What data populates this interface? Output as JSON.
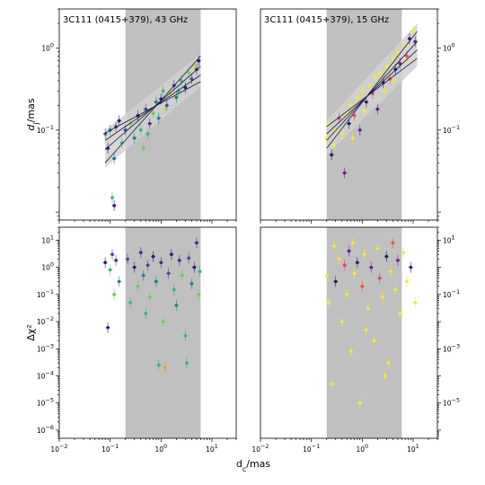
{
  "chart_data": [
    {
      "type": "scatter",
      "title": "3C111 (0415+379), 43 GHz",
      "xlabel": "",
      "ylabel_base": "d",
      "ylabel_sub": "j",
      "ylabel_unit": "/mas",
      "xscale": "log",
      "yscale": "log",
      "xlim": [
        0.01,
        30
      ],
      "ylim": [
        0.008,
        3
      ],
      "yticks": [
        {
          "v": 0.1,
          "label": "10",
          "exp": "−1"
        },
        {
          "v": 1,
          "label": "10",
          "exp": "0"
        }
      ],
      "shaded_range": [
        0.2,
        6
      ],
      "grid": false,
      "fit_lines": [
        {
          "x": [
            0.08,
            6
          ],
          "y": [
            0.04,
            0.8
          ]
        },
        {
          "x": [
            0.08,
            6
          ],
          "y": [
            0.058,
            0.6
          ]
        },
        {
          "x": [
            0.08,
            6
          ],
          "y": [
            0.075,
            0.47
          ]
        },
        {
          "x": [
            0.08,
            6
          ],
          "y": [
            0.092,
            0.39
          ]
        }
      ],
      "band": {
        "x": [
          0.08,
          6
        ],
        "lower": [
          0.035,
          0.34
        ],
        "upper": [
          0.1,
          0.85
        ]
      },
      "points": [
        {
          "x": 0.08,
          "y": 0.09,
          "c": "#3b4a9c"
        },
        {
          "x": 0.09,
          "y": 0.06,
          "c": "#2b1a6e"
        },
        {
          "x": 0.1,
          "y": 0.1,
          "c": "#1f7f8c"
        },
        {
          "x": 0.11,
          "y": 0.015,
          "c": "#35b779"
        },
        {
          "x": 0.12,
          "y": 0.045,
          "c": "#1f6f8c"
        },
        {
          "x": 0.12,
          "y": 0.012,
          "c": "#2b1a6e"
        },
        {
          "x": 0.13,
          "y": 0.11,
          "c": "#4a2a8a"
        },
        {
          "x": 0.15,
          "y": 0.13,
          "c": "#2b1a6e"
        },
        {
          "x": 0.17,
          "y": 0.07,
          "c": "#35b779"
        },
        {
          "x": 0.2,
          "y": 0.1,
          "c": "#3b4a9c"
        },
        {
          "x": 0.25,
          "y": 0.12,
          "c": "#6ccd5a"
        },
        {
          "x": 0.3,
          "y": 0.08,
          "c": "#1f7f8c"
        },
        {
          "x": 0.35,
          "y": 0.15,
          "c": "#2b1a6e"
        },
        {
          "x": 0.4,
          "y": 0.1,
          "c": "#35b779"
        },
        {
          "x": 0.5,
          "y": 0.18,
          "c": "#3b4a9c"
        },
        {
          "x": 0.6,
          "y": 0.12,
          "c": "#4a2a8a"
        },
        {
          "x": 0.7,
          "y": 0.16,
          "c": "#6ccd5a"
        },
        {
          "x": 0.8,
          "y": 0.22,
          "c": "#1f7f8c"
        },
        {
          "x": 1.0,
          "y": 0.24,
          "c": "#2b1a6e"
        },
        {
          "x": 1.1,
          "y": 0.3,
          "c": "#35b779"
        },
        {
          "x": 1.3,
          "y": 0.2,
          "c": "#3b4a9c"
        },
        {
          "x": 1.5,
          "y": 0.28,
          "c": "#b5de2b"
        },
        {
          "x": 1.8,
          "y": 0.35,
          "c": "#4a2a8a"
        },
        {
          "x": 2.0,
          "y": 0.25,
          "c": "#1f7f8c"
        },
        {
          "x": 2.5,
          "y": 0.4,
          "c": "#35b779"
        },
        {
          "x": 3.0,
          "y": 0.33,
          "c": "#2b1a6e"
        },
        {
          "x": 3.5,
          "y": 0.5,
          "c": "#6ccd5a"
        },
        {
          "x": 4.0,
          "y": 0.42,
          "c": "#3b4a9c"
        },
        {
          "x": 5.0,
          "y": 0.55,
          "c": "#4a2a8a"
        },
        {
          "x": 5.5,
          "y": 0.7,
          "c": "#2b1a6e"
        },
        {
          "x": 0.45,
          "y": 0.06,
          "c": "#6ccd5a"
        },
        {
          "x": 0.55,
          "y": 0.09,
          "c": "#35b779"
        },
        {
          "x": 0.9,
          "y": 0.14,
          "c": "#1f7f8c"
        },
        {
          "x": 1.2,
          "y": 0.18,
          "c": "#b5de2b"
        },
        {
          "x": 2.2,
          "y": 0.3,
          "c": "#35b779"
        },
        {
          "x": 4.5,
          "y": 0.6,
          "c": "#b5de2b"
        }
      ]
    },
    {
      "type": "scatter",
      "title": "3C111 (0415+379), 15 GHz",
      "xlabel": "",
      "xscale": "log",
      "yscale": "log",
      "xlim": [
        0.01,
        30
      ],
      "ylim": [
        0.008,
        3
      ],
      "yticks": [
        {
          "v": 0.1,
          "label": "10",
          "exp": "−1"
        },
        {
          "v": 1,
          "label": "10",
          "exp": "0"
        }
      ],
      "shaded_range": [
        0.2,
        6
      ],
      "grid": false,
      "fit_lines": [
        {
          "x": [
            0.2,
            12
          ],
          "y": [
            0.06,
            1.6
          ]
        },
        {
          "x": [
            0.2,
            12
          ],
          "y": [
            0.075,
            1.2
          ]
        },
        {
          "x": [
            0.2,
            12
          ],
          "y": [
            0.09,
            0.95
          ]
        },
        {
          "x": [
            0.2,
            12
          ],
          "y": [
            0.11,
            0.75
          ]
        }
      ],
      "band": {
        "x": [
          0.2,
          12
        ],
        "lower": [
          0.05,
          0.6
        ],
        "upper": [
          0.13,
          2.0
        ]
      },
      "points": [
        {
          "x": 0.2,
          "y": 0.08,
          "c": "#f5e83a"
        },
        {
          "x": 0.22,
          "y": 0.12,
          "c": "#f5e83a"
        },
        {
          "x": 0.25,
          "y": 0.05,
          "c": "#2b1a6e"
        },
        {
          "x": 0.3,
          "y": 0.1,
          "c": "#f5e83a"
        },
        {
          "x": 0.35,
          "y": 0.14,
          "c": "#d6456c"
        },
        {
          "x": 0.4,
          "y": 0.09,
          "c": "#f5e83a"
        },
        {
          "x": 0.45,
          "y": 0.03,
          "c": "#6a1b9a"
        },
        {
          "x": 0.5,
          "y": 0.16,
          "c": "#f5e83a"
        },
        {
          "x": 0.55,
          "y": 0.12,
          "c": "#2b1a6e"
        },
        {
          "x": 0.6,
          "y": 0.2,
          "c": "#f5e83a"
        },
        {
          "x": 0.7,
          "y": 0.15,
          "c": "#e8593a"
        },
        {
          "x": 0.8,
          "y": 0.25,
          "c": "#f5e83a"
        },
        {
          "x": 0.9,
          "y": 0.1,
          "c": "#6a1b9a"
        },
        {
          "x": 1.0,
          "y": 0.3,
          "c": "#f5e83a"
        },
        {
          "x": 1.2,
          "y": 0.22,
          "c": "#2b1a6e"
        },
        {
          "x": 1.4,
          "y": 0.35,
          "c": "#f5e83a"
        },
        {
          "x": 1.6,
          "y": 0.28,
          "c": "#d6456c"
        },
        {
          "x": 1.8,
          "y": 0.45,
          "c": "#f5e83a"
        },
        {
          "x": 2.0,
          "y": 0.18,
          "c": "#6a1b9a"
        },
        {
          "x": 2.3,
          "y": 0.5,
          "c": "#f5e83a"
        },
        {
          "x": 2.6,
          "y": 0.38,
          "c": "#2b1a6e"
        },
        {
          "x": 3.0,
          "y": 0.6,
          "c": "#f5e83a"
        },
        {
          "x": 3.5,
          "y": 0.42,
          "c": "#e8593a"
        },
        {
          "x": 4.0,
          "y": 0.75,
          "c": "#f5e83a"
        },
        {
          "x": 4.5,
          "y": 0.55,
          "c": "#2b1a6e"
        },
        {
          "x": 5.0,
          "y": 0.9,
          "c": "#f5e83a"
        },
        {
          "x": 5.5,
          "y": 0.65,
          "c": "#6a1b9a"
        },
        {
          "x": 6.5,
          "y": 1.1,
          "c": "#f5e83a"
        },
        {
          "x": 7.5,
          "y": 0.8,
          "c": "#d6456c"
        },
        {
          "x": 8.5,
          "y": 1.3,
          "c": "#2b1a6e"
        },
        {
          "x": 10.0,
          "y": 1.6,
          "c": "#f5e83a"
        },
        {
          "x": 11.0,
          "y": 1.2,
          "c": "#6a1b9a"
        },
        {
          "x": 0.28,
          "y": 0.065,
          "c": "#f5e83a"
        },
        {
          "x": 0.65,
          "y": 0.08,
          "c": "#f5e83a"
        },
        {
          "x": 1.1,
          "y": 0.17,
          "c": "#f5e83a"
        },
        {
          "x": 2.8,
          "y": 0.3,
          "c": "#f5e83a"
        },
        {
          "x": 4.2,
          "y": 0.4,
          "c": "#f5e83a"
        },
        {
          "x": 7.0,
          "y": 0.7,
          "c": "#f5e83a"
        }
      ]
    },
    {
      "type": "scatter",
      "xlabel": "",
      "ylabel": "Δχ²",
      "xscale": "log",
      "yscale": "log",
      "xlim": [
        0.01,
        30
      ],
      "ylim": [
        5e-07,
        30
      ],
      "xticks": [
        {
          "v": 0.01,
          "label": "10",
          "exp": "−2"
        },
        {
          "v": 0.1,
          "label": "10",
          "exp": "−1"
        },
        {
          "v": 1,
          "label": "10",
          "exp": "0"
        },
        {
          "v": 10,
          "label": "10",
          "exp": "1"
        }
      ],
      "yticks": [
        {
          "v": 1e-06,
          "label": "10",
          "exp": "−6"
        },
        {
          "v": 1e-05,
          "label": "10",
          "exp": "−5"
        },
        {
          "v": 0.0001,
          "label": "10",
          "exp": "−4"
        },
        {
          "v": 0.001,
          "label": "10",
          "exp": "−3"
        },
        {
          "v": 0.01,
          "label": "10",
          "exp": "−2"
        },
        {
          "v": 0.1,
          "label": "10",
          "exp": "−1"
        },
        {
          "v": 1,
          "label": "10",
          "exp": "0"
        },
        {
          "v": 10,
          "label": "10",
          "exp": "1"
        }
      ],
      "shaded_range": [
        0.2,
        6
      ],
      "grid": false,
      "points": [
        {
          "x": 0.08,
          "y": 1.5,
          "c": "#2b1a6e"
        },
        {
          "x": 0.09,
          "y": 0.006,
          "c": "#2b1a6e"
        },
        {
          "x": 0.1,
          "y": 0.8,
          "c": "#35b779"
        },
        {
          "x": 0.11,
          "y": 3,
          "c": "#3b4a9c"
        },
        {
          "x": 0.12,
          "y": 0.1,
          "c": "#6ccd5a"
        },
        {
          "x": 0.13,
          "y": 1.8,
          "c": "#4a2a8a"
        },
        {
          "x": 0.15,
          "y": 0.3,
          "c": "#1f7f8c"
        },
        {
          "x": 0.22,
          "y": 2,
          "c": "#3b4a9c"
        },
        {
          "x": 0.25,
          "y": 0.05,
          "c": "#35b779"
        },
        {
          "x": 0.3,
          "y": 1,
          "c": "#2b1a6e"
        },
        {
          "x": 0.35,
          "y": 0.2,
          "c": "#6ccd5a"
        },
        {
          "x": 0.4,
          "y": 3.5,
          "c": "#4a2a8a"
        },
        {
          "x": 0.45,
          "y": 0.5,
          "c": "#1f7f8c"
        },
        {
          "x": 0.5,
          "y": 0.02,
          "c": "#35b779"
        },
        {
          "x": 0.55,
          "y": 1.2,
          "c": "#3b4a9c"
        },
        {
          "x": 0.6,
          "y": 0.08,
          "c": "#6ccd5a"
        },
        {
          "x": 0.7,
          "y": 2.5,
          "c": "#2b1a6e"
        },
        {
          "x": 0.8,
          "y": 0.3,
          "c": "#1f7f8c"
        },
        {
          "x": 0.9,
          "y": 0.00025,
          "c": "#35b779"
        },
        {
          "x": 1.0,
          "y": 1.5,
          "c": "#4a2a8a"
        },
        {
          "x": 1.1,
          "y": 0.01,
          "c": "#6ccd5a"
        },
        {
          "x": 1.2,
          "y": 0.0002,
          "c": "#f0a030"
        },
        {
          "x": 1.4,
          "y": 0.6,
          "c": "#3b4a9c"
        },
        {
          "x": 1.6,
          "y": 3,
          "c": "#2b1a6e"
        },
        {
          "x": 1.8,
          "y": 0.15,
          "c": "#35b779"
        },
        {
          "x": 2.0,
          "y": 0.04,
          "c": "#1f7f8c"
        },
        {
          "x": 2.3,
          "y": 1.8,
          "c": "#4a2a8a"
        },
        {
          "x": 2.6,
          "y": 0.5,
          "c": "#6ccd5a"
        },
        {
          "x": 3.0,
          "y": 0.003,
          "c": "#35b779"
        },
        {
          "x": 3.2,
          "y": 0.0003,
          "c": "#35b779"
        },
        {
          "x": 3.5,
          "y": 2.2,
          "c": "#3b4a9c"
        },
        {
          "x": 4.0,
          "y": 0.25,
          "c": "#1f7f8c"
        },
        {
          "x": 4.5,
          "y": 1,
          "c": "#2b1a6e"
        },
        {
          "x": 5.0,
          "y": 8,
          "c": "#4a2a8a"
        },
        {
          "x": 5.5,
          "y": 0.1,
          "c": "#6ccd5a"
        },
        {
          "x": 5.8,
          "y": 0.7,
          "c": "#35b779"
        }
      ]
    },
    {
      "type": "scatter",
      "xlabel": "",
      "xscale": "log",
      "yscale": "log",
      "xlim": [
        0.01,
        30
      ],
      "ylim": [
        5e-07,
        30
      ],
      "xticks": [
        {
          "v": 0.01,
          "label": "10",
          "exp": "−2"
        },
        {
          "v": 0.1,
          "label": "10",
          "exp": "−1"
        },
        {
          "v": 1,
          "label": "10",
          "exp": "0"
        },
        {
          "v": 10,
          "label": "10",
          "exp": "1"
        }
      ],
      "yticks": [
        {
          "v": 1e-05,
          "label": "10",
          "exp": "−5"
        },
        {
          "v": 0.001,
          "label": "10",
          "exp": "−3"
        },
        {
          "v": 0.1,
          "label": "10",
          "exp": "−1"
        },
        {
          "v": 10,
          "label": "10",
          "exp": "1"
        }
      ],
      "shaded_range": [
        0.2,
        6
      ],
      "grid": false,
      "points": [
        {
          "x": 0.2,
          "y": 0.5,
          "c": "#f5e83a"
        },
        {
          "x": 0.22,
          "y": 0.05,
          "c": "#f5e83a"
        },
        {
          "x": 0.25,
          "y": 5e-05,
          "c": "#f5e83a"
        },
        {
          "x": 0.3,
          "y": 0.3,
          "c": "#2b1a6e"
        },
        {
          "x": 0.35,
          "y": 2,
          "c": "#f5e83a"
        },
        {
          "x": 0.4,
          "y": 0.01,
          "c": "#f5e83a"
        },
        {
          "x": 0.45,
          "y": 1.2,
          "c": "#d6456c"
        },
        {
          "x": 0.5,
          "y": 0.1,
          "c": "#f5e83a"
        },
        {
          "x": 0.55,
          "y": 4,
          "c": "#6a1b9a"
        },
        {
          "x": 0.6,
          "y": 0.0008,
          "c": "#f5e83a"
        },
        {
          "x": 0.7,
          "y": 0.6,
          "c": "#f5e83a"
        },
        {
          "x": 0.8,
          "y": 1.5,
          "c": "#2b1a6e"
        },
        {
          "x": 0.9,
          "y": 1e-05,
          "c": "#f5e83a"
        },
        {
          "x": 1.0,
          "y": 0.2,
          "c": "#e8593a"
        },
        {
          "x": 1.1,
          "y": 3,
          "c": "#f5e83a"
        },
        {
          "x": 1.3,
          "y": 0.03,
          "c": "#f5e83a"
        },
        {
          "x": 1.5,
          "y": 1,
          "c": "#6a1b9a"
        },
        {
          "x": 1.7,
          "y": 0.002,
          "c": "#f5e83a"
        },
        {
          "x": 2.0,
          "y": 5,
          "c": "#f5e83a"
        },
        {
          "x": 2.2,
          "y": 0.4,
          "c": "#d6456c"
        },
        {
          "x": 2.5,
          "y": 0.08,
          "c": "#f5e83a"
        },
        {
          "x": 3.0,
          "y": 2.5,
          "c": "#2b1a6e"
        },
        {
          "x": 3.3,
          "y": 0.0003,
          "c": "#f5e83a"
        },
        {
          "x": 3.6,
          "y": 0.7,
          "c": "#f5e83a"
        },
        {
          "x": 4.0,
          "y": 8,
          "c": "#e8593a"
        },
        {
          "x": 4.5,
          "y": 0.15,
          "c": "#f5e83a"
        },
        {
          "x": 5.0,
          "y": 1.8,
          "c": "#6a1b9a"
        },
        {
          "x": 5.5,
          "y": 0.02,
          "c": "#f5e83a"
        },
        {
          "x": 6.5,
          "y": 3.5,
          "c": "#f5e83a"
        },
        {
          "x": 7.5,
          "y": 0.3,
          "c": "#f5e83a"
        },
        {
          "x": 9.0,
          "y": 1,
          "c": "#2b1a6e"
        },
        {
          "x": 11.0,
          "y": 0.05,
          "c": "#f5e83a"
        },
        {
          "x": 0.28,
          "y": 6,
          "c": "#f5e83a"
        },
        {
          "x": 0.65,
          "y": 8,
          "c": "#f5e83a"
        },
        {
          "x": 1.2,
          "y": 0.005,
          "c": "#f5e83a"
        },
        {
          "x": 2.8,
          "y": 0.0001,
          "c": "#f5e83a"
        }
      ]
    }
  ],
  "shared_xlabel_base": "d",
  "shared_xlabel_sub": "c",
  "shared_xlabel_unit": "/mas",
  "colors": {
    "shade": "#c0c0c0",
    "band": "#d0d0d0",
    "axis": "#000000"
  }
}
